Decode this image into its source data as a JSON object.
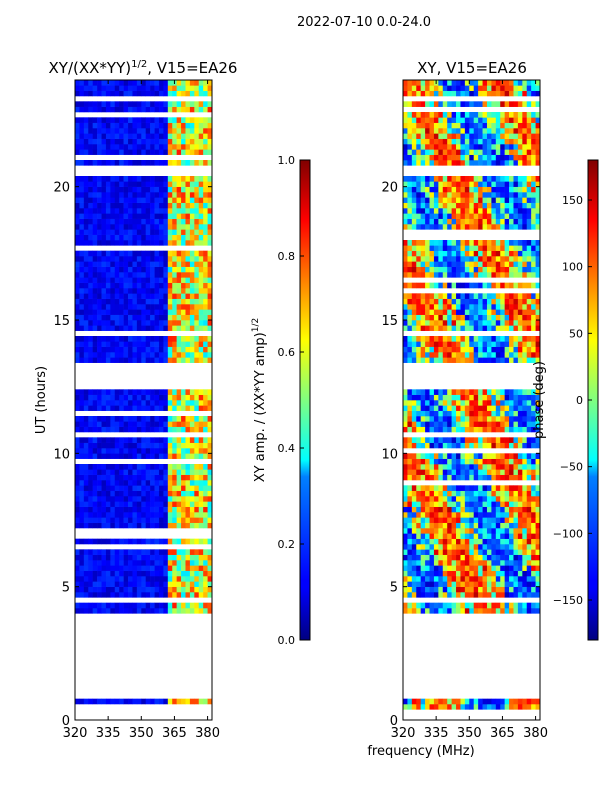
{
  "suptitle": "2022-07-10 0.0-24.0",
  "shared_xlabel": "frequency (MHz)",
  "chart_data": [
    {
      "type": "heatmap",
      "title": "XY/(XX*YY)^{1/2}, V15=EA26",
      "title_main": "XY/(XX*YY)",
      "title_sup": "1/2",
      "title_rest": ", V15=EA26",
      "xlabel": "frequency (MHz)",
      "ylabel": "UT (hours)",
      "xlim": [
        320,
        382
      ],
      "ylim": [
        0,
        24
      ],
      "xticks": [
        320,
        335,
        350,
        365,
        380
      ],
      "yticks": [
        0,
        5,
        10,
        15,
        20
      ],
      "rfi_band": [
        362,
        382
      ],
      "colorbar": {
        "label": "XY amp. / (XX*YY amp)^{1/2}",
        "label_main": "XY amp. / (XX*YY amp)",
        "label_sup": "1/2",
        "range": [
          0.0,
          1.0
        ],
        "ticks": [
          0.0,
          0.2,
          0.4,
          0.6,
          0.8,
          1.0
        ],
        "tick_labels": [
          "0.0",
          "0.2",
          "0.4",
          "0.6",
          "0.8",
          "1.0"
        ]
      }
    },
    {
      "type": "heatmap",
      "title": "XY, V15=EA26",
      "xlabel": "frequency (MHz)",
      "ylabel": "",
      "xlim": [
        320,
        382
      ],
      "ylim": [
        0,
        24
      ],
      "xticks": [
        320,
        335,
        350,
        365,
        380
      ],
      "yticks": [
        0,
        5,
        10,
        15,
        20
      ],
      "colorbar": {
        "label": "phase (deg)",
        "range": [
          -180,
          180
        ],
        "ticks": [
          -150,
          -100,
          -50,
          0,
          50,
          100,
          150
        ],
        "tick_labels": [
          "−150",
          "−100",
          "−50",
          "0",
          "50",
          "100",
          "150"
        ]
      }
    }
  ],
  "data_intervals_hours": [
    [
      0.5,
      0.8
    ],
    [
      4.0,
      4.5
    ],
    [
      4.6,
      5.0
    ],
    [
      5.0,
      12.6
    ],
    [
      13.4,
      20.3
    ],
    [
      20.7,
      24.0
    ]
  ]
}
